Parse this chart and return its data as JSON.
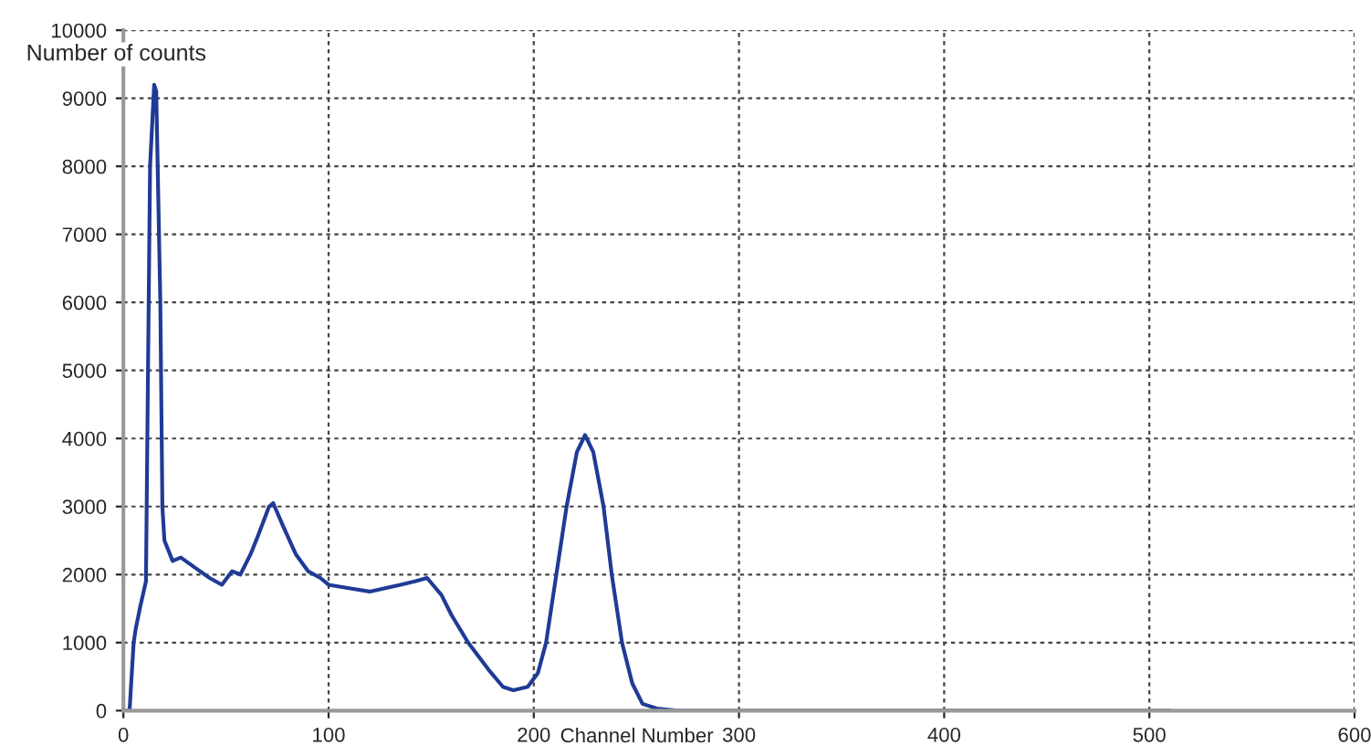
{
  "chart_data": {
    "type": "line",
    "xlabel": "Channel Number",
    "ylabel": "Number of counts",
    "xlim": [
      0,
      600
    ],
    "xticks": [
      0,
      100,
      200,
      300,
      400,
      500,
      600
    ],
    "ylim": [
      0,
      10000
    ],
    "yticks": [
      0,
      1000,
      2000,
      3000,
      4000,
      5000,
      6000,
      7000,
      8000,
      9000,
      10000
    ],
    "grid": true,
    "line_style": "solid",
    "marker": "none",
    "series": [
      {
        "color": "#1f3b96",
        "x": [
          0,
          3,
          5,
          6,
          8,
          11,
          12,
          13,
          15,
          16,
          18,
          19,
          20,
          24,
          28,
          35,
          42,
          48,
          53,
          57,
          62,
          66,
          71,
          73,
          78,
          84,
          90,
          96,
          100,
          110,
          120,
          135,
          142,
          148,
          155,
          160,
          168,
          178,
          185,
          190,
          197,
          202,
          206,
          211,
          216,
          221,
          225,
          229,
          234,
          238,
          243,
          248,
          253,
          260,
          270,
          510
        ],
        "values": [
          0,
          0,
          1000,
          1200,
          1500,
          1900,
          5000,
          8000,
          9200,
          9100,
          6000,
          3000,
          2500,
          2200,
          2250,
          2100,
          1950,
          1850,
          2050,
          2000,
          2300,
          2600,
          3000,
          3050,
          2700,
          2300,
          2050,
          1950,
          1850,
          1800,
          1750,
          1850,
          1900,
          1950,
          1700,
          1400,
          1000,
          600,
          350,
          300,
          350,
          550,
          1000,
          2000,
          3000,
          3800,
          4050,
          3800,
          3000,
          2000,
          1000,
          400,
          100,
          30,
          0,
          0
        ]
      }
    ]
  }
}
